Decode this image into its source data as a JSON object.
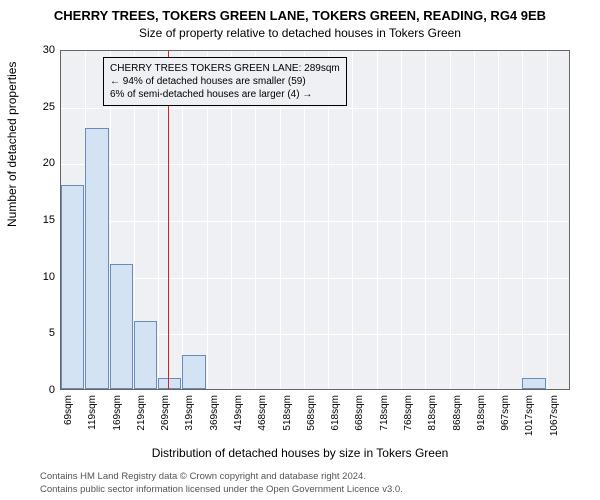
{
  "chart": {
    "type": "histogram",
    "title_main": "CHERRY TREES, TOKERS GREEN LANE, TOKERS GREEN, READING, RG4 9EB",
    "title_sub": "Size of property relative to detached houses in Tokers Green",
    "y_axis_label": "Number of detached properties",
    "x_axis_label": "Distribution of detached houses by size in Tokers Green",
    "ylim": [
      0,
      30
    ],
    "ytick_step": 5,
    "y_ticks": [
      0,
      5,
      10,
      15,
      20,
      25,
      30
    ],
    "x_ticks": [
      "69sqm",
      "119sqm",
      "169sqm",
      "219sqm",
      "269sqm",
      "319sqm",
      "369sqm",
      "419sqm",
      "468sqm",
      "518sqm",
      "568sqm",
      "618sqm",
      "668sqm",
      "718sqm",
      "768sqm",
      "818sqm",
      "868sqm",
      "918sqm",
      "967sqm",
      "1017sqm",
      "1067sqm"
    ],
    "bars": [
      {
        "x_index": 0,
        "value": 18
      },
      {
        "x_index": 1,
        "value": 23
      },
      {
        "x_index": 2,
        "value": 11
      },
      {
        "x_index": 3,
        "value": 6
      },
      {
        "x_index": 4,
        "value": 1
      },
      {
        "x_index": 5,
        "value": 3
      },
      {
        "x_index": 19,
        "value": 1
      }
    ],
    "bar_color": "#d4e3f3",
    "bar_border_color": "#6a8cb8",
    "background_color": "#eef0f4",
    "grid_color": "#ffffff",
    "reference_line": {
      "x_index": 4.4,
      "color": "#d62020"
    },
    "annotation": {
      "line1": "CHERRY TREES TOKERS GREEN LANE: 289sqm",
      "line2": "← 94% of detached houses are smaller (59)",
      "line3": "6% of semi-detached houses are larger (4) →"
    },
    "footer_line1": "Contains HM Land Registry data © Crown copyright and database right 2024.",
    "footer_line2": "Contains public sector information licensed under the Open Government Licence v3.0.",
    "title_fontsize": 13,
    "subtitle_fontsize": 12,
    "axis_label_fontsize": 12,
    "tick_fontsize": 11,
    "annotation_fontsize": 10,
    "footer_fontsize": 9.5
  }
}
